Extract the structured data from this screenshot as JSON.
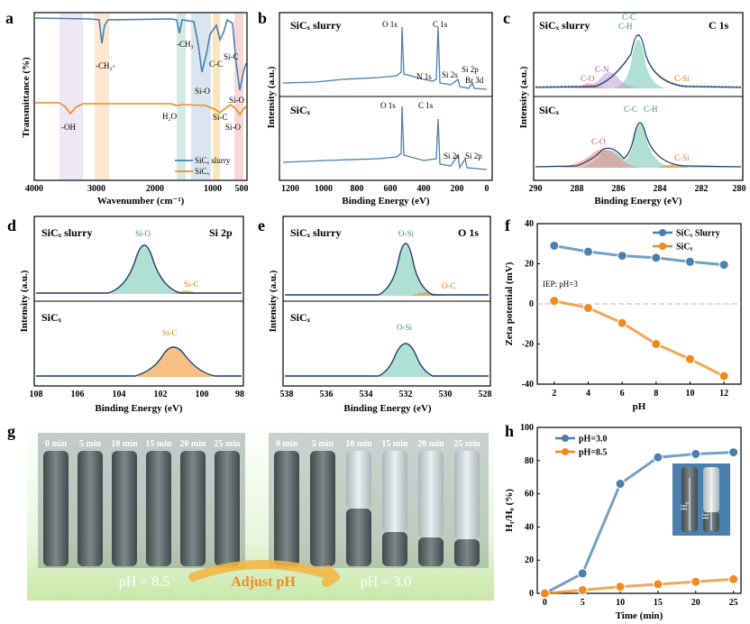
{
  "colors": {
    "blue": "#4a7fb0",
    "orange": "#f28a1c",
    "teal": "#7cc9b5",
    "salmon": "#e8908a",
    "purple": "#b49ad8",
    "bgGreen": "#d9efc4",
    "arrowOrange": "#f5b440"
  },
  "panels": {
    "a": {
      "letter": "a",
      "xlabel": "Wavenumber (cm⁻¹)",
      "ylabel": "Transmittance (%)",
      "xticks": [
        "4000",
        "3000",
        "2000",
        "1000",
        "500"
      ],
      "annotations": [
        "-CH₃",
        "-CH₂-",
        "C-C",
        "Si-C",
        "Si-O",
        "-OH",
        "H₂O",
        "Si-C",
        "Si-O",
        "Si-O"
      ],
      "legend": [
        "SiCₓ slurry",
        "SiCₓ"
      ]
    },
    "b": {
      "letter": "b",
      "xlabel": "Binding Energy (eV)",
      "ylabel": "Intensity (a.u.)",
      "xticks": [
        "1200",
        "1000",
        "800",
        "600",
        "400",
        "200",
        "0"
      ],
      "top": "SiCₓ slurry",
      "bottom": "SiCₓ",
      "peaksTop": [
        "O 1s",
        "C 1s",
        "N 1s",
        "Si 2s",
        "Si 2p",
        "Br 3d"
      ],
      "peaksBottom": [
        "O 1s",
        "C 1s",
        "Si 2s",
        "Si 2p"
      ]
    },
    "c": {
      "letter": "c",
      "xlabel": "Binding Energy (eV)",
      "ylabel": "Intensity (a.u.)",
      "corner": "C 1s",
      "xticks": [
        "290",
        "288",
        "286",
        "284",
        "282",
        "280"
      ],
      "top": "SiCₓ slurry",
      "bottom": "SiCₓ",
      "labelsTop": [
        "C-C",
        "C-H",
        "C-N",
        "C-O",
        "C-Si"
      ],
      "labelsBottom": [
        "C-C",
        "C-H",
        "C-O",
        "C-Si"
      ]
    },
    "d": {
      "letter": "d",
      "xlabel": "Binding Energy (eV)",
      "ylabel": "Intensity (a.u.)",
      "corner": "Si 2p",
      "xticks": [
        "108",
        "106",
        "104",
        "102",
        "100",
        "98"
      ],
      "top": "SiCₓ slurry",
      "bottom": "SiCₓ",
      "labelsTop": [
        "Si-O",
        "Si-C"
      ],
      "labelsBottom": [
        "Si-C"
      ]
    },
    "e": {
      "letter": "e",
      "xlabel": "Binding Energy (eV)",
      "ylabel": "Intensity (a.u.)",
      "corner": "O 1s",
      "xticks": [
        "538",
        "536",
        "534",
        "532",
        "530",
        "528"
      ],
      "top": "SiCₓ slurry",
      "bottom": "SiCₓ",
      "labelsTop": [
        "O-Si",
        "O-C"
      ],
      "labelsBottom": [
        "O-Si"
      ]
    },
    "f": {
      "letter": "f",
      "xlabel": "pH",
      "ylabel": "Zeta potential (mV)",
      "annotation": "IEP: pH=3",
      "yticks": [
        "40",
        "20",
        "0",
        "-20",
        "-40"
      ],
      "xticks": [
        "2",
        "4",
        "6",
        "8",
        "10",
        "12"
      ]
    },
    "g": {
      "letter": "g",
      "times": [
        "0 min",
        "5 min",
        "10 min",
        "15 min",
        "20 min",
        "25 min"
      ],
      "leftLabel": "pH = 8.5",
      "rightLabel": "pH = 3.0",
      "arrowLabel": "Adjust pH",
      "tubeMark": "10ml"
    },
    "h": {
      "letter": "h",
      "xlabel": "Time (min)",
      "ylabel": "H₁/H₀ (%)",
      "yticks": [
        "0",
        "20",
        "40",
        "60",
        "80",
        "100"
      ],
      "xticks": [
        "0",
        "5",
        "10",
        "15",
        "20",
        "25"
      ],
      "insetLabels": [
        "H₀",
        "H₁"
      ]
    }
  },
  "chart_data": [
    {
      "panel": "f",
      "type": "line",
      "x": [
        2,
        4,
        6,
        8,
        10,
        12
      ],
      "xlim": [
        1,
        13
      ],
      "ylim": [
        -40,
        40
      ],
      "series": [
        {
          "name": "SiCₓ Slurry",
          "values": [
            29,
            26,
            24,
            23,
            21,
            19.5
          ]
        },
        {
          "name": "SiCₓ",
          "values": [
            1.5,
            -2,
            -9.5,
            -20,
            -27.5,
            -36
          ]
        }
      ]
    },
    {
      "panel": "h",
      "type": "line",
      "x": [
        0,
        5,
        10,
        15,
        20,
        25
      ],
      "xlim": [
        -1,
        26
      ],
      "ylim": [
        0,
        100
      ],
      "series": [
        {
          "name": "pH=3.0",
          "values": [
            0,
            12,
            66,
            82,
            84,
            85
          ]
        },
        {
          "name": "pH=8.5",
          "values": [
            0,
            2,
            4,
            5.5,
            7,
            8.5
          ]
        }
      ]
    }
  ]
}
